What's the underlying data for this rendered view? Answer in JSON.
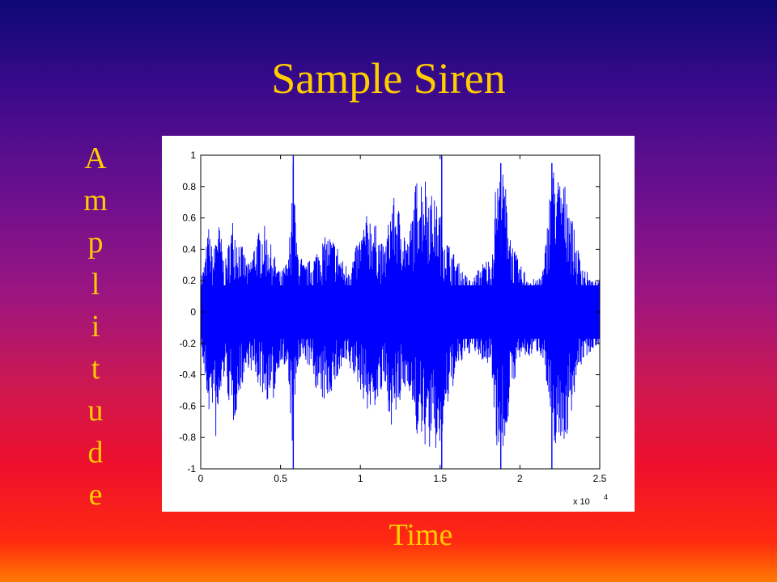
{
  "slide": {
    "title": "Sample Siren",
    "ylabel_letters": [
      "A",
      "m",
      "p",
      "l",
      "i",
      "t",
      "u",
      "d",
      "e"
    ],
    "xlabel": "Time"
  },
  "colors": {
    "title": "#ffcc00",
    "signal": "#0000ff",
    "plot_background": "#ffffff"
  },
  "chart_data": {
    "type": "line",
    "title": "",
    "xlabel": "Time",
    "ylabel": "Amplitude",
    "xlim": [
      0,
      2.5
    ],
    "ylim": [
      -1,
      1
    ],
    "x_exponent_label": "x 10",
    "x_exponent_power": "4",
    "x_ticks": [
      0,
      0.5,
      1,
      1.5,
      2,
      2.5
    ],
    "x_tick_labels": [
      "0",
      "0.5",
      "1",
      "1.5",
      "2",
      "2.5"
    ],
    "y_ticks": [
      -1,
      -0.8,
      -0.6,
      -0.4,
      -0.2,
      0,
      0.2,
      0.4,
      0.6,
      0.8,
      1
    ],
    "y_tick_labels": [
      "-1",
      "-0.8",
      "-0.6",
      "-0.4",
      "-0.2",
      "0",
      "0.2",
      "0.4",
      "0.6",
      "0.8",
      "1"
    ],
    "grid": false,
    "series": [
      {
        "color": "#0000ff",
        "envelope": {
          "x": [
            0,
            0.02,
            0.05,
            0.08,
            0.1,
            0.12,
            0.15,
            0.2,
            0.25,
            0.3,
            0.35,
            0.4,
            0.45,
            0.5,
            0.55,
            0.58,
            0.6,
            0.65,
            0.7,
            0.75,
            0.8,
            0.85,
            0.9,
            0.95,
            1.0,
            1.05,
            1.1,
            1.15,
            1.2,
            1.25,
            1.3,
            1.35,
            1.4,
            1.45,
            1.5,
            1.55,
            1.6,
            1.65,
            1.7,
            1.75,
            1.8,
            1.82,
            1.85,
            1.9,
            1.95,
            2.0,
            2.05,
            2.1,
            2.15,
            2.2,
            2.25,
            2.3,
            2.35,
            2.4,
            2.45,
            2.5
          ],
          "upper": [
            0.25,
            0.3,
            0.55,
            0.35,
            0.6,
            0.55,
            0.3,
            0.6,
            0.45,
            0.3,
            0.5,
            0.55,
            0.4,
            0.25,
            0.35,
            1.0,
            0.45,
            0.3,
            0.35,
            0.45,
            0.5,
            0.45,
            0.3,
            0.35,
            0.5,
            0.65,
            0.55,
            0.4,
            0.75,
            0.65,
            0.45,
            0.85,
            0.9,
            0.75,
            0.65,
            0.45,
            0.35,
            0.25,
            0.2,
            0.3,
            0.35,
            0.3,
            0.85,
            0.9,
            0.45,
            0.3,
            0.25,
            0.2,
            0.3,
            0.95,
            0.85,
            0.8,
            0.45,
            0.3,
            0.2,
            0.2
          ],
          "lower": [
            -0.2,
            -0.4,
            -0.65,
            -0.6,
            -0.9,
            -0.6,
            -0.4,
            -0.75,
            -0.5,
            -0.35,
            -0.45,
            -0.55,
            -0.6,
            -0.3,
            -0.45,
            -0.98,
            -0.4,
            -0.3,
            -0.4,
            -0.6,
            -0.55,
            -0.45,
            -0.35,
            -0.4,
            -0.5,
            -0.65,
            -0.6,
            -0.5,
            -0.75,
            -0.6,
            -0.45,
            -0.8,
            -0.85,
            -0.9,
            -0.9,
            -0.6,
            -0.4,
            -0.3,
            -0.25,
            -0.3,
            -0.35,
            -0.3,
            -0.85,
            -0.9,
            -0.5,
            -0.3,
            -0.3,
            -0.25,
            -0.3,
            -0.85,
            -0.85,
            -0.8,
            -0.45,
            -0.3,
            -0.25,
            -0.2
          ]
        },
        "spikes": [
          {
            "x": 0.58,
            "y_min": -1.0,
            "y_max": 1.0
          },
          {
            "x": 1.51,
            "y_min": -1.0,
            "y_max": 1.0
          },
          {
            "x": 1.88,
            "y_min": -1.0,
            "y_max": 0.95
          },
          {
            "x": 2.2,
            "y_min": -1.0,
            "y_max": 0.95
          }
        ]
      }
    ]
  }
}
